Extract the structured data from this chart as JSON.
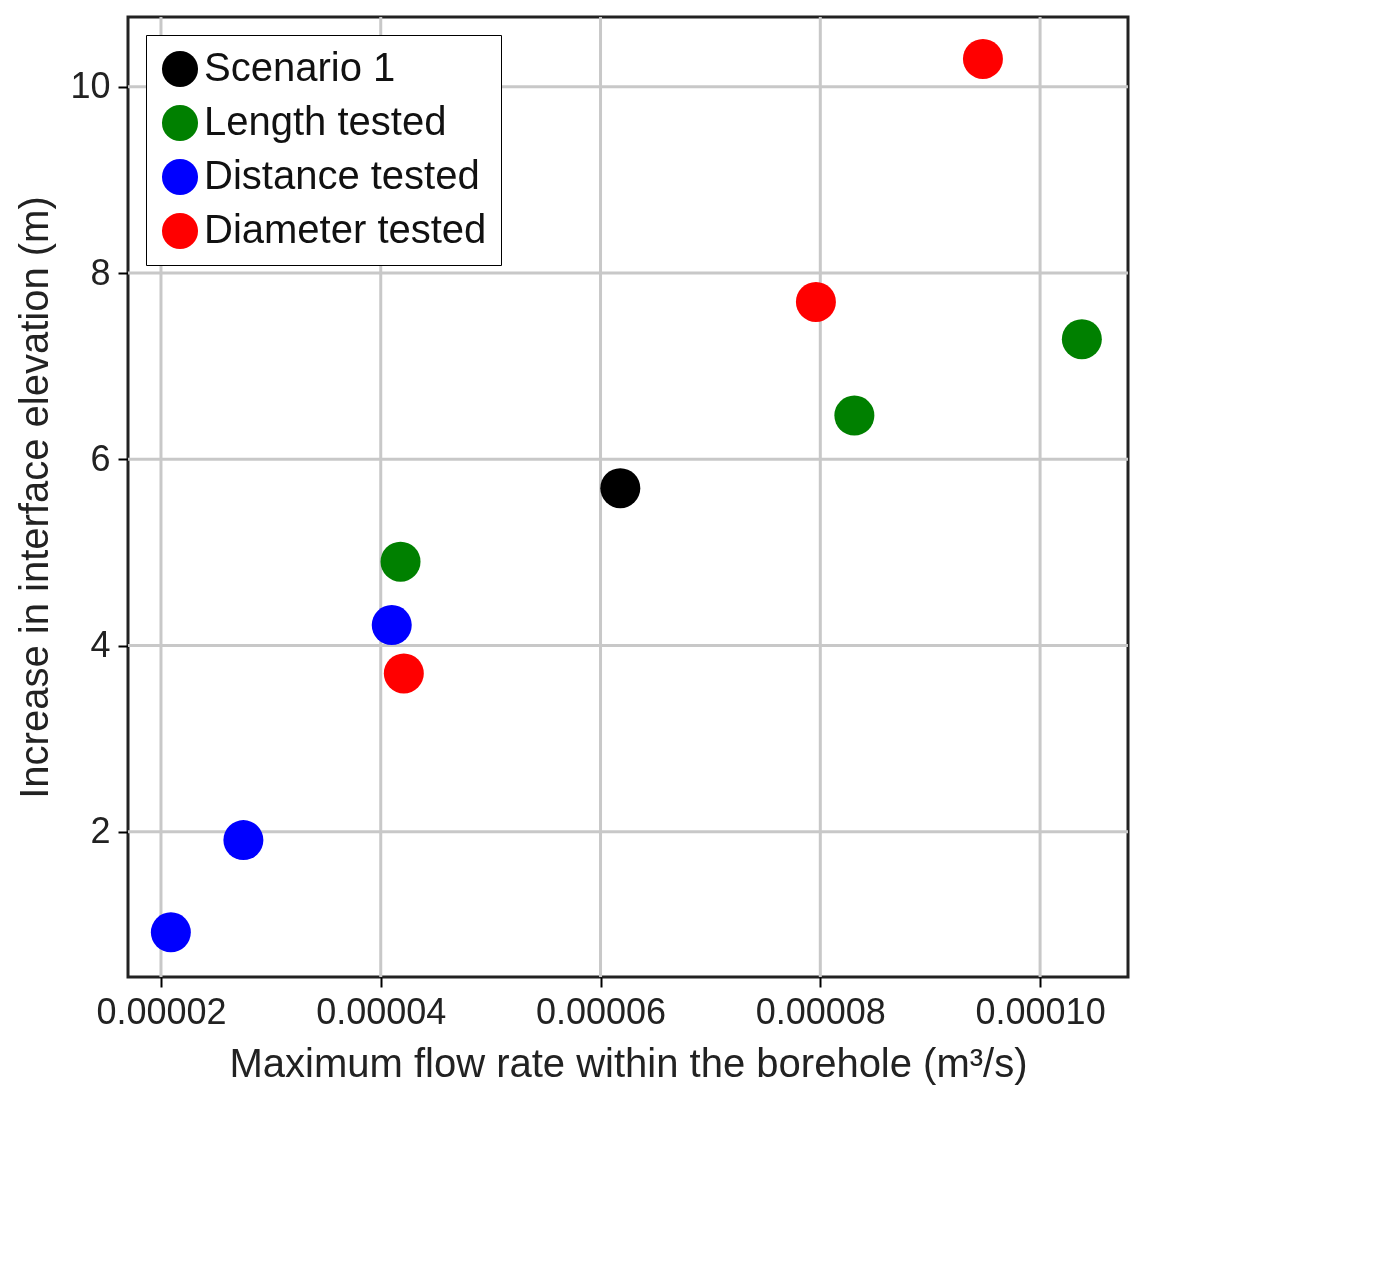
{
  "chart_data": {
    "type": "scatter",
    "xlabel": "Maximum flow rate within the borehole (m³/s)",
    "ylabel": "Increase in interface elevation (m)",
    "xlim": [
      1.7e-05,
      0.000108
    ],
    "xticks": [
      {
        "value": 2e-05,
        "label": "0.00002"
      },
      {
        "value": 4e-05,
        "label": "0.00004"
      },
      {
        "value": 6e-05,
        "label": "0.00006"
      },
      {
        "value": 8e-05,
        "label": "0.00008"
      },
      {
        "value": 0.0001,
        "label": "0.00010"
      }
    ],
    "ylim": [
      0.44,
      10.75
    ],
    "yticks": [
      2,
      4,
      6,
      8,
      10
    ],
    "grid": true,
    "legend": "top left",
    "marker": "circle",
    "series": [
      {
        "name": "Scenario 1",
        "color": "#000000",
        "x": [
          6.18e-05
        ],
        "values": [
          5.69
        ]
      },
      {
        "name": "Length tested",
        "color": "#008000",
        "x": [
          4.18e-05,
          8.31e-05,
          0.0001038
        ],
        "values": [
          4.9,
          6.47,
          7.29
        ]
      },
      {
        "name": "Distance tested",
        "color": "#0000ff",
        "x": [
          2.09e-05,
          2.75e-05,
          4.1e-05
        ],
        "values": [
          0.92,
          1.91,
          4.22
        ]
      },
      {
        "name": "Diameter tested",
        "color": "#ff0000",
        "x": [
          4.21e-05,
          7.96e-05,
          9.48e-05
        ],
        "values": [
          3.7,
          7.69,
          10.3
        ]
      }
    ]
  }
}
